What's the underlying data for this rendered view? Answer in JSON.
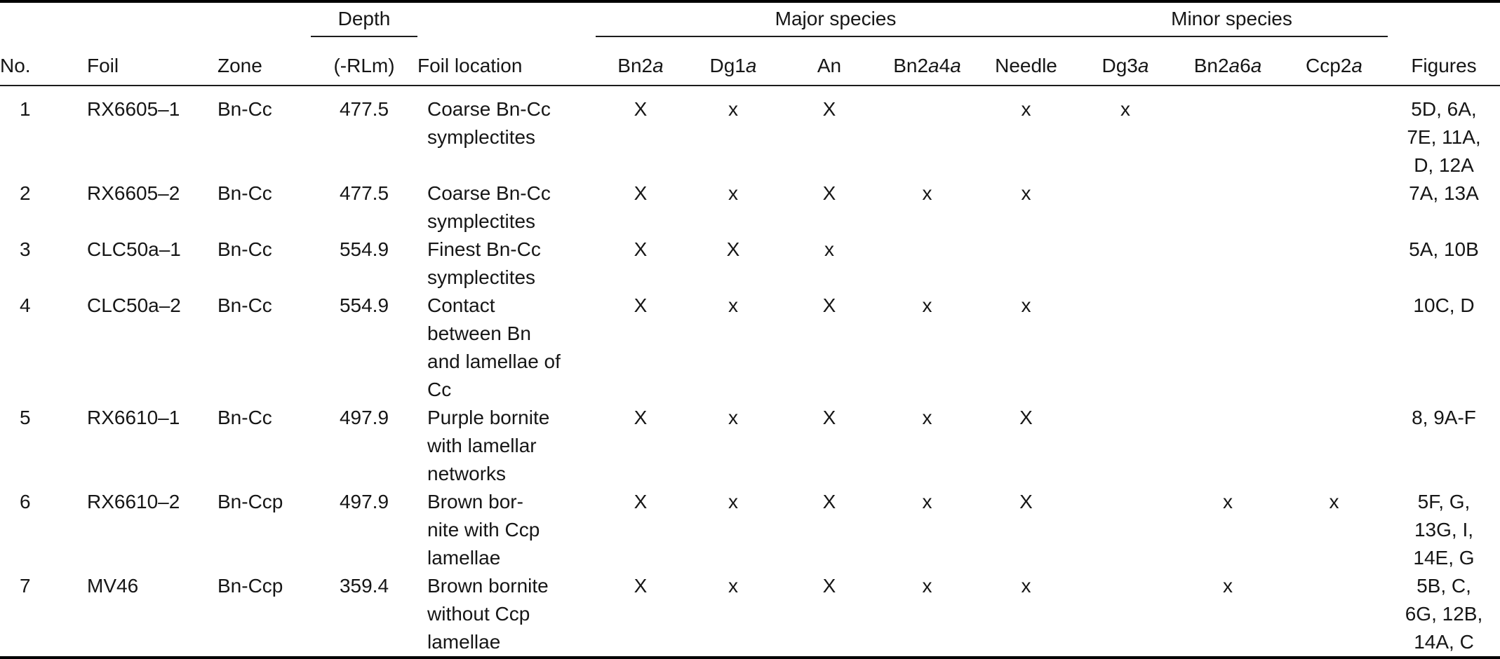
{
  "table": {
    "groups": {
      "depth": "Depth",
      "major": "Major species",
      "minor": "Minor species"
    },
    "columns": [
      {
        "key": "no",
        "label": "No.",
        "align": "left"
      },
      {
        "key": "foil",
        "label": "Foil",
        "align": "left"
      },
      {
        "key": "zone",
        "label": "Zone",
        "align": "left"
      },
      {
        "key": "depth",
        "label": "(-RLm)",
        "align": "center"
      },
      {
        "key": "location",
        "label": "Foil location",
        "align": "left"
      },
      {
        "key": "bn2a",
        "label_parts": [
          [
            "Bn2",
            false
          ],
          [
            "a",
            true
          ]
        ],
        "align": "center"
      },
      {
        "key": "dg1a",
        "label_parts": [
          [
            "Dg1",
            false
          ],
          [
            "a",
            true
          ]
        ],
        "align": "center"
      },
      {
        "key": "an",
        "label": "An",
        "align": "center"
      },
      {
        "key": "bn2a4a",
        "label_parts": [
          [
            "Bn2",
            false
          ],
          [
            "a",
            true
          ],
          [
            "4",
            false
          ],
          [
            "a",
            true
          ]
        ],
        "align": "center"
      },
      {
        "key": "needle",
        "label": "Needle",
        "align": "center"
      },
      {
        "key": "dg3a",
        "label_parts": [
          [
            "Dg3",
            false
          ],
          [
            "a",
            true
          ]
        ],
        "align": "center"
      },
      {
        "key": "bn2a6a",
        "label_parts": [
          [
            "Bn2",
            false
          ],
          [
            "a",
            true
          ],
          [
            "6",
            false
          ],
          [
            "a",
            true
          ]
        ],
        "align": "center"
      },
      {
        "key": "ccp2a",
        "label_parts": [
          [
            "Ccp2",
            false
          ],
          [
            "a",
            true
          ]
        ],
        "align": "center"
      },
      {
        "key": "figures",
        "label": "Figures",
        "align": "center"
      }
    ],
    "rows": [
      {
        "no": "1",
        "foil": "RX6605–1",
        "zone": "Bn-Cc",
        "depth": "477.5",
        "location": [
          "Coarse Bn-Cc",
          "symplectites"
        ],
        "bn2a": "X",
        "dg1a": "x",
        "an": "X",
        "bn2a4a": "",
        "needle": "x",
        "dg3a": "x",
        "bn2a6a": "",
        "ccp2a": "",
        "figures": [
          "5D, 6A,",
          "7E, 11A,",
          "D, 12A"
        ]
      },
      {
        "no": "2",
        "foil": "RX6605–2",
        "zone": "Bn-Cc",
        "depth": "477.5",
        "location": [
          "Coarse Bn-Cc",
          "symplectites"
        ],
        "bn2a": "X",
        "dg1a": "x",
        "an": "X",
        "bn2a4a": "x",
        "needle": "x",
        "dg3a": "",
        "bn2a6a": "",
        "ccp2a": "",
        "figures": [
          "7A, 13A"
        ]
      },
      {
        "no": "3",
        "foil": "CLC50a–1",
        "zone": "Bn-Cc",
        "depth": "554.9",
        "location": [
          "Finest Bn-Cc",
          "symplectites"
        ],
        "bn2a": "X",
        "dg1a": "X",
        "an": "x",
        "bn2a4a": "",
        "needle": "",
        "dg3a": "",
        "bn2a6a": "",
        "ccp2a": "",
        "figures": [
          "5A, 10B"
        ]
      },
      {
        "no": "4",
        "foil": "CLC50a–2",
        "zone": "Bn-Cc",
        "depth": "554.9",
        "location": [
          "Contact",
          "between Bn",
          "and lamellae of",
          "Cc"
        ],
        "bn2a": "X",
        "dg1a": "x",
        "an": "X",
        "bn2a4a": "x",
        "needle": "x",
        "dg3a": "",
        "bn2a6a": "",
        "ccp2a": "",
        "figures": [
          "10C, D"
        ]
      },
      {
        "no": "5",
        "foil": "RX6610–1",
        "zone": "Bn-Cc",
        "depth": "497.9",
        "location": [
          "Purple bornite",
          "with lamellar",
          "networks"
        ],
        "bn2a": "X",
        "dg1a": "x",
        "an": "X",
        "bn2a4a": "x",
        "needle": "X",
        "dg3a": "",
        "bn2a6a": "",
        "ccp2a": "",
        "figures": [
          "8, 9A-F"
        ]
      },
      {
        "no": "6",
        "foil": "RX6610–2",
        "zone": "Bn-Ccp",
        "depth": "497.9",
        "location": [
          "Brown bor-",
          "nite with Ccp",
          "lamellae"
        ],
        "bn2a": "X",
        "dg1a": "x",
        "an": "X",
        "bn2a4a": "x",
        "needle": "X",
        "dg3a": "",
        "bn2a6a": "x",
        "ccp2a": "x",
        "figures": [
          "5F, G,",
          "13G, I,",
          "14E, G"
        ]
      },
      {
        "no": "7",
        "foil": "MV46",
        "zone": "Bn-Ccp",
        "depth": "359.4",
        "location": [
          "Brown bornite",
          "without Ccp",
          "lamellae"
        ],
        "bn2a": "X",
        "dg1a": "x",
        "an": "X",
        "bn2a4a": "x",
        "needle": "x",
        "dg3a": "",
        "bn2a6a": "x",
        "ccp2a": "",
        "figures": [
          "5B, C,",
          "6G, 12B,",
          "14A, C"
        ]
      }
    ]
  }
}
